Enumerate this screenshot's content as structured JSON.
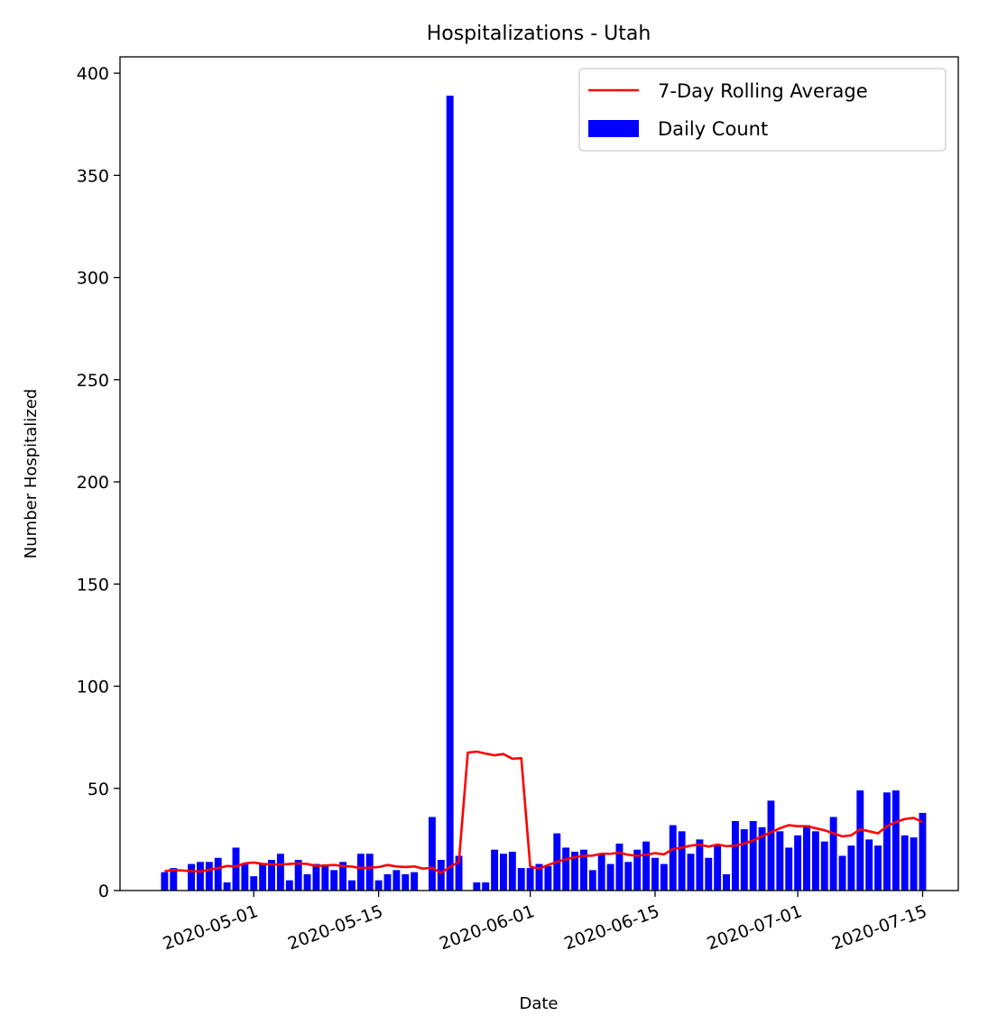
{
  "chart_data": {
    "type": "bar",
    "title": "Hospitalizations - Utah",
    "xlabel": "Date",
    "ylabel": "Number Hospitalized",
    "ylim": [
      0,
      408
    ],
    "xlim": [
      "2020-04-16",
      "2020-07-19"
    ],
    "x_ticks": [
      "2020-05-01",
      "2020-05-15",
      "2020-06-01",
      "2020-06-15",
      "2020-07-01",
      "2020-07-15"
    ],
    "y_ticks": [
      0,
      50,
      100,
      150,
      200,
      250,
      300,
      350,
      400
    ],
    "grid": false,
    "legend_position": "top-right",
    "dates": [
      "2020-04-21",
      "2020-04-22",
      "2020-04-23",
      "2020-04-24",
      "2020-04-25",
      "2020-04-26",
      "2020-04-27",
      "2020-04-28",
      "2020-04-29",
      "2020-04-30",
      "2020-05-01",
      "2020-05-02",
      "2020-05-03",
      "2020-05-04",
      "2020-05-05",
      "2020-05-06",
      "2020-05-07",
      "2020-05-08",
      "2020-05-09",
      "2020-05-10",
      "2020-05-11",
      "2020-05-12",
      "2020-05-13",
      "2020-05-14",
      "2020-05-15",
      "2020-05-16",
      "2020-05-17",
      "2020-05-18",
      "2020-05-19",
      "2020-05-20",
      "2020-05-21",
      "2020-05-22",
      "2020-05-23",
      "2020-05-24",
      "2020-05-25",
      "2020-05-26",
      "2020-05-27",
      "2020-05-28",
      "2020-05-29",
      "2020-05-30",
      "2020-05-31",
      "2020-06-01",
      "2020-06-02",
      "2020-06-03",
      "2020-06-04",
      "2020-06-05",
      "2020-06-06",
      "2020-06-07",
      "2020-06-08",
      "2020-06-09",
      "2020-06-10",
      "2020-06-11",
      "2020-06-12",
      "2020-06-13",
      "2020-06-14",
      "2020-06-15",
      "2020-06-16",
      "2020-06-17",
      "2020-06-18",
      "2020-06-19",
      "2020-06-20",
      "2020-06-21",
      "2020-06-22",
      "2020-06-23",
      "2020-06-24",
      "2020-06-25",
      "2020-06-26",
      "2020-06-27",
      "2020-06-28",
      "2020-06-29",
      "2020-06-30",
      "2020-07-01",
      "2020-07-02",
      "2020-07-03",
      "2020-07-04",
      "2020-07-05",
      "2020-07-06",
      "2020-07-07",
      "2020-07-08",
      "2020-07-09",
      "2020-07-10",
      "2020-07-11",
      "2020-07-12",
      "2020-07-13",
      "2020-07-14",
      "2020-07-15"
    ],
    "series": [
      {
        "name": "Daily Count",
        "type": "bar",
        "color": "#0000ff",
        "values": [
          9,
          11,
          0,
          13,
          14,
          14,
          16,
          4,
          21,
          13,
          7,
          13,
          15,
          18,
          5,
          15,
          8,
          13,
          12,
          10,
          14,
          5,
          18,
          18,
          5,
          8,
          10,
          8,
          9,
          0,
          36,
          15,
          389,
          17,
          0,
          4,
          4,
          20,
          18,
          19,
          11,
          11,
          13,
          12,
          28,
          21,
          19,
          20,
          10,
          18,
          13,
          23,
          14,
          20,
          24,
          16,
          13,
          32,
          29,
          18,
          25,
          16,
          22,
          8,
          34,
          30,
          34,
          31,
          44,
          29,
          21,
          27,
          32,
          29,
          24,
          36,
          17,
          22,
          49,
          25,
          22,
          48,
          49,
          27,
          26,
          38
        ]
      },
      {
        "name": "7-Day Rolling Average",
        "type": "line",
        "color": "#ff0000",
        "values": [
          9.5,
          10,
          9.8,
          9.5,
          9.3,
          10.2,
          11,
          12,
          11.8,
          13.3,
          13.7,
          13,
          12.8,
          12.7,
          13,
          13.3,
          13,
          12,
          12.3,
          12.5,
          12,
          11.7,
          11,
          11.2,
          11.5,
          12.5,
          11.8,
          11.5,
          11.8,
          10.7,
          11.2,
          8.5,
          11.6,
          14,
          67.5,
          68,
          67,
          66.2,
          66.8,
          64.5,
          64.8,
          11.7,
          10.7,
          12.5,
          14,
          15.3,
          16.3,
          17,
          17.1,
          18,
          18,
          18.5,
          17.5,
          17,
          17.5,
          18.3,
          17.7,
          20.3,
          21,
          22,
          22.5,
          21.5,
          22.5,
          21.7,
          22,
          23,
          24.5,
          26.5,
          28.5,
          30.5,
          32,
          31.5,
          31.5,
          30.5,
          29.5,
          28,
          26.5,
          27,
          30,
          29,
          28,
          31.5,
          33.5,
          35,
          35.5,
          33.5
        ]
      }
    ]
  }
}
